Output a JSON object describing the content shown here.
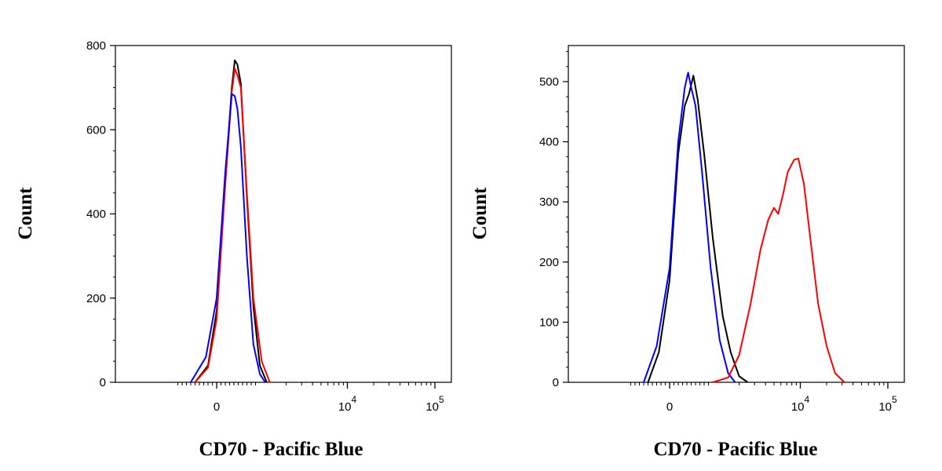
{
  "chart_data": [
    {
      "type": "line",
      "xlabel": "CD70 - Pacific Blue",
      "ylabel": "Count",
      "ylim": [
        0,
        800
      ],
      "yticks": [
        0,
        200,
        400,
        600,
        800
      ],
      "yticks_labels": [
        "0",
        "200",
        "400",
        "600",
        "800"
      ],
      "xscale": "biexponential",
      "xticks": [
        {
          "value": 0,
          "label": "0"
        },
        {
          "value": 10000,
          "label": "10",
          "sup": "4"
        },
        {
          "value": 100000,
          "label": "10",
          "sup": "5"
        }
      ],
      "series": [
        {
          "color": "#000000",
          "points": [
            [
              -500,
              0
            ],
            [
              -200,
              40
            ],
            [
              0,
              170
            ],
            [
              200,
              480
            ],
            [
              350,
              700
            ],
            [
              420,
              765
            ],
            [
              480,
              755
            ],
            [
              560,
              710
            ],
            [
              700,
              440
            ],
            [
              850,
              180
            ],
            [
              1000,
              40
            ],
            [
              1200,
              0
            ]
          ]
        },
        {
          "color": "#ff0000",
          "points": [
            [
              -500,
              0
            ],
            [
              -200,
              35
            ],
            [
              0,
              150
            ],
            [
              200,
              470
            ],
            [
              350,
              690
            ],
            [
              420,
              745
            ],
            [
              480,
              730
            ],
            [
              560,
              700
            ],
            [
              700,
              450
            ],
            [
              850,
              200
            ],
            [
              1050,
              50
            ],
            [
              1300,
              0
            ]
          ]
        },
        {
          "color": "#0000ff",
          "points": [
            [
              -600,
              0
            ],
            [
              -250,
              60
            ],
            [
              0,
              200
            ],
            [
              200,
              500
            ],
            [
              350,
              685
            ],
            [
              420,
              680
            ],
            [
              480,
              650
            ],
            [
              560,
              560
            ],
            [
              700,
              300
            ],
            [
              850,
              90
            ],
            [
              1000,
              20
            ],
            [
              1150,
              0
            ]
          ]
        }
      ]
    },
    {
      "type": "line",
      "xlabel": "CD70 - Pacific Blue",
      "ylabel": "Count",
      "ylim": [
        0,
        560
      ],
      "yticks": [
        0,
        100,
        200,
        300,
        400,
        500
      ],
      "yticks_labels": [
        "0",
        "100",
        "200",
        "300",
        "400",
        "500"
      ],
      "xscale": "biexponential",
      "xticks": [
        {
          "value": 0,
          "label": "0"
        },
        {
          "value": 10000,
          "label": "10",
          "sup": "4"
        },
        {
          "value": 100000,
          "label": "10",
          "sup": "5"
        }
      ],
      "series": [
        {
          "color": "#000000",
          "points": [
            [
              -500,
              0
            ],
            [
              -250,
              50
            ],
            [
              0,
              170
            ],
            [
              200,
              380
            ],
            [
              350,
              460
            ],
            [
              450,
              480
            ],
            [
              550,
              510
            ],
            [
              650,
              470
            ],
            [
              800,
              380
            ],
            [
              1000,
              240
            ],
            [
              1300,
              110
            ],
            [
              1600,
              50
            ],
            [
              2000,
              10
            ],
            [
              2500,
              0
            ]
          ]
        },
        {
          "color": "#0000ff",
          "points": [
            [
              -600,
              0
            ],
            [
              -300,
              60
            ],
            [
              0,
              190
            ],
            [
              200,
              400
            ],
            [
              350,
              490
            ],
            [
              430,
              515
            ],
            [
              500,
              490
            ],
            [
              600,
              460
            ],
            [
              750,
              350
            ],
            [
              950,
              190
            ],
            [
              1200,
              70
            ],
            [
              1500,
              15
            ],
            [
              1800,
              0
            ]
          ]
        },
        {
          "color": "#ff0000",
          "points": [
            [
              1000,
              0
            ],
            [
              1500,
              8
            ],
            [
              2000,
              45
            ],
            [
              2700,
              130
            ],
            [
              3500,
              220
            ],
            [
              4300,
              270
            ],
            [
              5000,
              290
            ],
            [
              5600,
              280
            ],
            [
              6300,
              310
            ],
            [
              7200,
              350
            ],
            [
              8500,
              370
            ],
            [
              9500,
              372
            ],
            [
              11000,
              330
            ],
            [
              13000,
              240
            ],
            [
              16000,
              130
            ],
            [
              20000,
              60
            ],
            [
              25000,
              15
            ],
            [
              32000,
              0
            ]
          ]
        }
      ]
    }
  ]
}
